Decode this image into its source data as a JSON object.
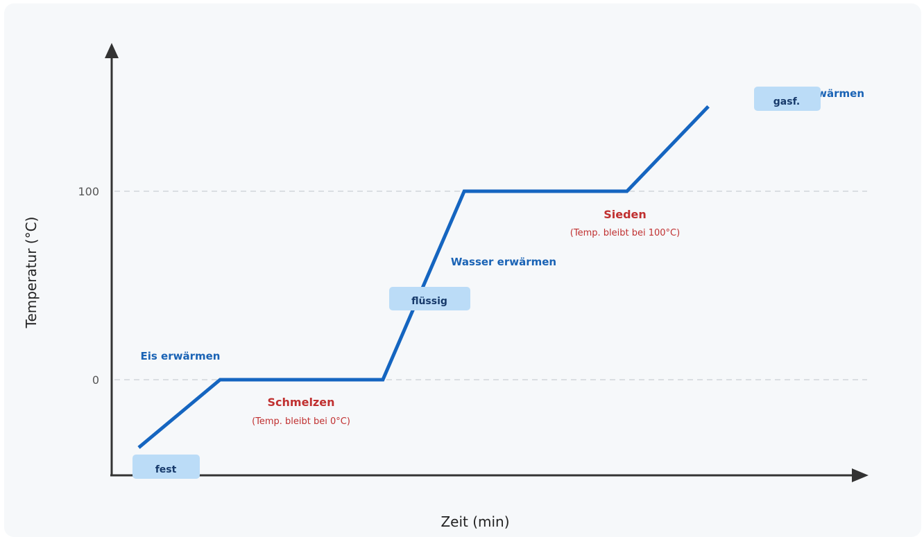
{
  "chart_data": {
    "type": "line",
    "title": "",
    "xlabel": "Zeit (min)",
    "ylabel": "Temperatur (°C)",
    "y_ticks": [
      "0",
      "100"
    ],
    "ylim": [
      -50,
      150
    ],
    "grid": "dashed at 0 and 100",
    "series": [
      {
        "points": [
          {
            "x": 0,
            "y": -36
          },
          {
            "x": 1,
            "y": 0
          },
          {
            "x": 3,
            "y": 0
          },
          {
            "x": 4,
            "y": 100
          },
          {
            "x": 6,
            "y": 100
          },
          {
            "x": 7,
            "y": 145
          }
        ],
        "color": "#1565c0"
      }
    ],
    "annotations": {
      "eis": "Eis erwärmen",
      "schmelzen": "Schmelzen",
      "schmelzen_note": "(Temp. bleibt bei 0°C)",
      "wasser": "Wasser erwärmen",
      "sieden": "Sieden",
      "sieden_note": "(Temp. bleibt bei 100°C)",
      "dampf": "wärmen"
    },
    "states": {
      "fest": "fest",
      "fluessig": "flüssig",
      "gasf": "gasf."
    }
  },
  "colors": {
    "line": "#1565c0",
    "axis": "#333333",
    "grid": "#d0d5da",
    "phase_blue": "#1a63b5",
    "phase_red": "#c03030",
    "state_box": "#bbdcf7"
  }
}
